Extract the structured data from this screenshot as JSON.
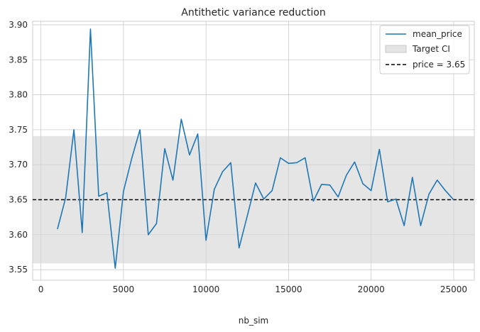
{
  "chart_data": {
    "type": "line",
    "title": "Antithetic variance reduction",
    "xlabel": "nb_sim",
    "ylabel": "",
    "xlim": [
      -500,
      26250
    ],
    "ylim": [
      3.535,
      3.905
    ],
    "xticks": [
      0,
      5000,
      10000,
      15000,
      20000,
      25000
    ],
    "yticks": [
      3.55,
      3.6,
      3.65,
      3.7,
      3.75,
      3.8,
      3.85,
      3.9
    ],
    "xtick_labels": [
      "0",
      "5000",
      "10000",
      "15000",
      "20000",
      "25000"
    ],
    "ytick_labels": [
      "3.55",
      "3.60",
      "3.65",
      "3.70",
      "3.75",
      "3.80",
      "3.85",
      "3.90"
    ],
    "grid": true,
    "legend_position": "top-right",
    "series": [
      {
        "name": "mean_price",
        "color": "#1f77b4",
        "x": [
          1000,
          1500,
          2000,
          2500,
          3000,
          3500,
          4000,
          4500,
          5000,
          5500,
          6000,
          6500,
          7000,
          7500,
          8000,
          8500,
          9000,
          9500,
          10000,
          10500,
          11000,
          11500,
          12000,
          12500,
          13000,
          13500,
          14000,
          14500,
          15000,
          15500,
          16000,
          16500,
          17000,
          17500,
          18000,
          18500,
          19000,
          19500,
          20000,
          20500,
          21000,
          21500,
          22000,
          22500,
          23000,
          23500,
          24000,
          24500,
          25000
        ],
        "y": [
          3.608,
          3.653,
          3.75,
          3.603,
          3.894,
          3.655,
          3.66,
          3.552,
          3.662,
          3.709,
          3.75,
          3.6,
          3.616,
          3.723,
          3.678,
          3.765,
          3.714,
          3.744,
          3.592,
          3.665,
          3.69,
          3.703,
          3.581,
          3.627,
          3.674,
          3.651,
          3.663,
          3.71,
          3.702,
          3.703,
          3.71,
          3.648,
          3.672,
          3.671,
          3.654,
          3.685,
          3.704,
          3.673,
          3.663,
          3.722,
          3.647,
          3.651,
          3.613,
          3.682,
          3.613,
          3.658,
          3.678,
          3.663,
          3.65
        ]
      }
    ],
    "band": {
      "name": "Target CI",
      "y0": 3.559,
      "y1": 3.741,
      "color": "#d3d3d3"
    },
    "hline": {
      "name": "price = 3.65",
      "y": 3.65,
      "color": "#000000"
    }
  }
}
